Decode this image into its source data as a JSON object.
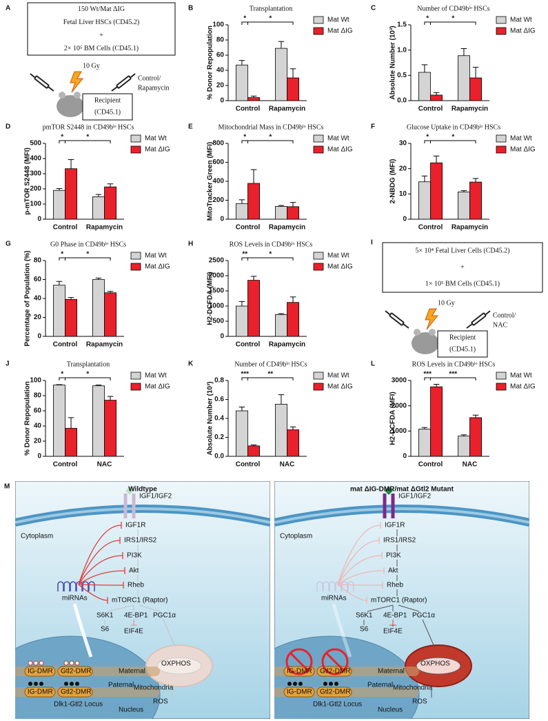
{
  "chart_data": [
    {
      "type": "bar",
      "panel": "B",
      "title": "Transplantation",
      "ylabel": "% Donor Repopulation",
      "categories": [
        "Control",
        "Rapamycin"
      ],
      "series": [
        {
          "name": "Mat Wt",
          "color": "#d4d4d4",
          "values": [
            47,
            69
          ],
          "errors": [
            6,
            9
          ]
        },
        {
          "name": "Mat ΔIG",
          "color": "#e8212a",
          "values": [
            4,
            30
          ],
          "errors": [
            2,
            12
          ]
        }
      ],
      "ylim": [
        0,
        100
      ],
      "yticks": [
        0,
        20,
        40,
        60,
        80,
        100
      ],
      "annotations": [
        "*",
        "*"
      ]
    },
    {
      "type": "bar",
      "panel": "C",
      "title": "Number of CD49bˡᵒ HSCs",
      "ylabel": "Absolute Number (10³)",
      "categories": [
        "Control",
        "Rapamycin"
      ],
      "series": [
        {
          "name": "Mat Wt",
          "color": "#d4d4d4",
          "values": [
            0.56,
            0.89
          ],
          "errors": [
            0.15,
            0.14
          ]
        },
        {
          "name": "Mat ΔIG",
          "color": "#e8212a",
          "values": [
            0.11,
            0.45
          ],
          "errors": [
            0.05,
            0.21
          ]
        }
      ],
      "ylim": [
        0,
        1.5
      ],
      "yticks": [
        {
          "value": 0,
          "label": "0.0"
        },
        0.5,
        {
          "value": 1,
          "label": "1.0"
        },
        1.5
      ],
      "annotations": [
        "*",
        "*"
      ]
    },
    {
      "type": "bar",
      "panel": "D",
      "title": "pmTOR S2448 in CD49bˡᵒ HSCs",
      "ylabel": "p-mTOR S2448 (MFI)",
      "categories": [
        "Control",
        "Rapamycin"
      ],
      "series": [
        {
          "name": "Mat Wt",
          "color": "#d4d4d4",
          "values": [
            190,
            148
          ],
          "errors": [
            12,
            15
          ]
        },
        {
          "name": "Mat ΔIG",
          "color": "#e8212a",
          "values": [
            333,
            213
          ],
          "errors": [
            60,
            20
          ]
        }
      ],
      "ylim": [
        0,
        500
      ],
      "yticks": [
        0,
        100,
        200,
        300,
        400,
        500
      ],
      "annotations": [
        "*",
        "*"
      ]
    },
    {
      "type": "bar",
      "panel": "E",
      "title": "Mitochondrial Mass in CD49bˡᵒ HSCs",
      "ylabel": "MitoTracker Green (MFI)",
      "categories": [
        "Control",
        "Rapamycin"
      ],
      "series": [
        {
          "name": "Mat Wt",
          "color": "#d4d4d4",
          "values": [
            165,
            135
          ],
          "errors": [
            40,
            10
          ]
        },
        {
          "name": "Mat ΔIG",
          "color": "#e8212a",
          "values": [
            378,
            132
          ],
          "errors": [
            145,
            45
          ]
        }
      ],
      "ylim": [
        0,
        800
      ],
      "yticks": [
        0,
        200,
        400,
        600,
        800
      ],
      "annotations": [
        "*",
        "*"
      ]
    },
    {
      "type": "bar",
      "panel": "F",
      "title": "Glucose Uptake in CD49bˡᵒ HSCs",
      "ylabel": "2-NBDG (MFI)",
      "categories": [
        "Control",
        "Rapamycin"
      ],
      "series": [
        {
          "name": "Mat Wt",
          "color": "#d4d4d4",
          "values": [
            14.8,
            10.8
          ],
          "errors": [
            2.3,
            0.5
          ]
        },
        {
          "name": "Mat ΔIG",
          "color": "#e8212a",
          "values": [
            22.3,
            14.7
          ],
          "errors": [
            2.7,
            1.4
          ]
        }
      ],
      "ylim": [
        0,
        30
      ],
      "yticks": [
        0,
        10,
        20,
        30
      ],
      "annotations": [
        "*",
        "*"
      ]
    },
    {
      "type": "bar",
      "panel": "G",
      "title": "G0 Phase in CD49bˡᵒ HSCs",
      "ylabel": "Percentage of Population (%)",
      "categories": [
        "Control",
        "Rapamycin"
      ],
      "series": [
        {
          "name": "Mat Wt",
          "color": "#d4d4d4",
          "values": [
            54,
            60
          ],
          "errors": [
            4,
            1.5
          ]
        },
        {
          "name": "Mat ΔIG",
          "color": "#e8212a",
          "values": [
            39,
            46
          ],
          "errors": [
            2,
            1.5
          ]
        }
      ],
      "ylim": [
        0,
        80
      ],
      "yticks": [
        0,
        20,
        40,
        60,
        80
      ],
      "annotations": [
        "*",
        "*"
      ]
    },
    {
      "type": "bar",
      "panel": "H",
      "title": "ROS Levels in CD49bˡᵒ HSCs",
      "ylabel": "H2-DCFDA (MFI)",
      "categories": [
        "Control",
        "Rapamycin"
      ],
      "series": [
        {
          "name": "Mat Wt",
          "color": "#d4d4d4",
          "values": [
            1000,
            720
          ],
          "errors": [
            150,
            30
          ]
        },
        {
          "name": "Mat ΔIG",
          "color": "#e8212a",
          "values": [
            1850,
            1120
          ],
          "errors": [
            130,
            180
          ]
        }
      ],
      "ylim": [
        0,
        2500
      ],
      "yticks": [
        0,
        500,
        1000,
        1500,
        2000,
        2500
      ],
      "annotations": [
        "**",
        "*"
      ]
    },
    {
      "type": "bar",
      "panel": "J",
      "title": "Transplantation",
      "ylabel": "% Donor Repopulation",
      "categories": [
        "Control",
        "NAC"
      ],
      "series": [
        {
          "name": "Mat Wt",
          "color": "#d4d4d4",
          "values": [
            94,
            93
          ],
          "errors": [
            0.5,
            1
          ]
        },
        {
          "name": "Mat ΔIG",
          "color": "#e8212a",
          "values": [
            37,
            74
          ],
          "errors": [
            14,
            5
          ]
        }
      ],
      "ylim": [
        0,
        100
      ],
      "yticks": [
        0,
        20,
        40,
        60,
        80,
        100
      ],
      "annotations": [
        "*",
        "*"
      ]
    },
    {
      "type": "bar",
      "panel": "K",
      "title": "Number of CD49bˡᵒ HSCs",
      "ylabel": "Absolute Number (10³)",
      "categories": [
        "Control",
        "NAC"
      ],
      "series": [
        {
          "name": "Mat Wt",
          "color": "#d4d4d4",
          "values": [
            0.48,
            0.55
          ],
          "errors": [
            0.04,
            0.1
          ]
        },
        {
          "name": "Mat ΔIG",
          "color": "#e8212a",
          "values": [
            0.11,
            0.28
          ],
          "errors": [
            0.01,
            0.03
          ]
        }
      ],
      "ylim": [
        0,
        0.8
      ],
      "yticks": [
        {
          "value": 0,
          "label": "0.0"
        },
        0.2,
        0.4,
        0.6,
        0.8
      ],
      "annotations": [
        "***",
        "**"
      ]
    },
    {
      "type": "bar",
      "panel": "L",
      "title": "ROS Levels in CD49bˡᵒ HSCs",
      "ylabel": "H2-DCFDA (MFI)",
      "categories": [
        "Control",
        "NAC"
      ],
      "series": [
        {
          "name": "Mat Wt",
          "color": "#d4d4d4",
          "values": [
            1080,
            800
          ],
          "errors": [
            60,
            50
          ]
        },
        {
          "name": "Mat ΔIG",
          "color": "#e8212a",
          "values": [
            2750,
            1530
          ],
          "errors": [
            100,
            100
          ]
        }
      ],
      "ylim": [
        0,
        3000
      ],
      "yticks": [
        0,
        1000,
        2000,
        3000
      ],
      "annotations": [
        "***",
        "***"
      ]
    }
  ],
  "diagrams": [
    {
      "panel": "A",
      "box": [
        "150 Wt/Mat ΔIG",
        "Fetal Liver HSCs (CD45.2)",
        "+",
        "2× 10⁵ BM Cells (CD45.1)"
      ],
      "dose": "10 Gy",
      "treatment": [
        "Control/",
        "Rapamycin"
      ],
      "recipient": [
        "Recipient",
        "(CD45.1)"
      ]
    },
    {
      "panel": "I",
      "box": [
        "5× 10⁴ Fetal Liver Cells (CD45.2)",
        "+",
        "1× 10⁵ BM Cells (CD45.1)"
      ],
      "dose": "10 Gy",
      "treatment": [
        "Control/",
        "NAC"
      ],
      "recipient": [
        "Recipient",
        "(CD45.1)"
      ]
    }
  ],
  "pathway": {
    "panel": "M",
    "panels": [
      {
        "title": "Wildtype",
        "labels": {
          "ligand": "IGF1/IGF2",
          "cytoplasm": "Cytoplasm",
          "receptor": "IGF1R",
          "irs": "IRS1/IRS2",
          "pi3k": "PI3K",
          "akt": "Akt",
          "rheb": "Rheb",
          "mtorc1": "mTORC1 (Raptor)",
          "s6k1": "S6K1",
          "bp1": "4E-BP1",
          "pgc1a": "PGC1α",
          "s6": "S6",
          "eif4e": "EIF4E",
          "mirnas": "miRNAs",
          "oxphos": "OXPHOS",
          "mito": "Mitochondria",
          "ros": "ROS",
          "igdmr_m": "IG-DMR",
          "gtl2dmr_m": "Gtl2-DMR",
          "maternal": "Maternal",
          "igdmr_p": "IG-DMR",
          "gtl2dmr_p": "Gtl2-DMR",
          "paternal": "Paternal",
          "locus": "Dlk1-Gtl2 Locus",
          "nucleus": "Nucleus"
        }
      },
      {
        "title": "mat ΔIG-DMR/mat ΔGtl2 Mutant",
        "labels": {
          "ligand": "IGF1/IGF2",
          "cytoplasm": "Cytoplasm",
          "receptor": "IGF1R",
          "irs": "IRS1/IRS2",
          "pi3k": "PI3K",
          "akt": "Akt",
          "rheb": "Rheb",
          "mtorc1": "mTORC1 (Raptor)",
          "s6k1": "S6K1",
          "bp1": "4E-BP1",
          "pgc1a": "PGC1α",
          "s6": "S6",
          "eif4e": "EIF4E",
          "mirnas": "miRNAs",
          "oxphos": "OXPHOS",
          "mito": "Mitochondria",
          "ros": "ROS",
          "igdmr_m": "IG-DMR",
          "gtl2dmr_m": "Gtl2-DMR",
          "maternal": "Maternal",
          "igdmr_p": "IG-DMR",
          "gtl2dmr_p": "Gtl2-DMR",
          "paternal": "Paternal",
          "locus": "Dlk1-Gtl2 Locus",
          "nucleus": "Nucleus"
        }
      }
    ]
  }
}
